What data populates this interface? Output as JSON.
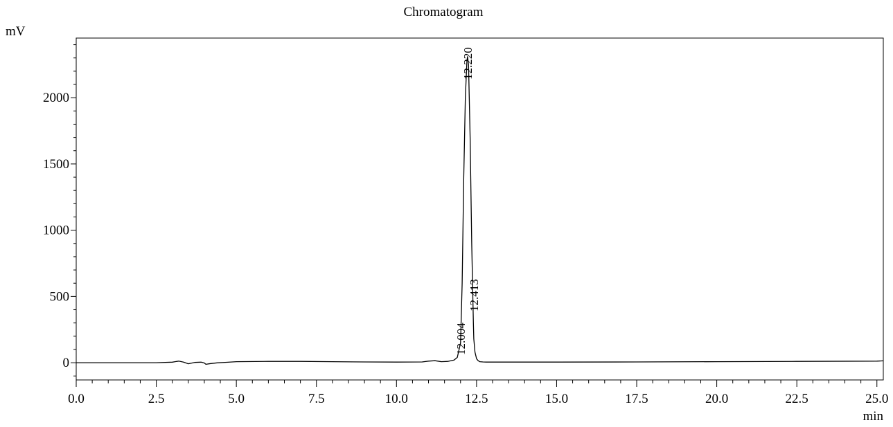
{
  "chart_data": {
    "type": "line",
    "title": "Chromatogram",
    "xlabel": "min",
    "ylabel": "mV",
    "xlim": [
      0,
      25.2
    ],
    "ylim": [
      -130,
      2450
    ],
    "x_ticks": [
      "0.0",
      "2.5",
      "5.0",
      "7.5",
      "10.0",
      "12.5",
      "15.0",
      "17.5",
      "20.0",
      "22.5",
      "25.0"
    ],
    "x_tick_values": [
      0,
      2.5,
      5,
      7.5,
      10,
      12.5,
      15,
      17.5,
      20,
      22.5,
      25
    ],
    "y_ticks": [
      "0",
      "500",
      "1000",
      "1500",
      "2000"
    ],
    "y_tick_values": [
      0,
      500,
      1000,
      1500,
      2000
    ],
    "grid": false,
    "legend": "none",
    "line_color": "#000000",
    "peaks": [
      {
        "label": "12.004",
        "time": 12.004
      },
      {
        "label": "12.220",
        "time": 12.22
      },
      {
        "label": "12.413",
        "time": 12.413
      }
    ],
    "series": [
      {
        "x": [
          0,
          2.5,
          3.0,
          3.2,
          3.35,
          3.5,
          3.7,
          3.9,
          4.0,
          4.05,
          4.2,
          4.4,
          4.7,
          5.0,
          6.0,
          7.0,
          8.0,
          9.0,
          10.0,
          10.8,
          11.0,
          11.2,
          11.4,
          11.6,
          11.8,
          11.9,
          12.0,
          12.05,
          12.1,
          12.15,
          12.2,
          12.22,
          12.25,
          12.3,
          12.35,
          12.4,
          12.413,
          12.45,
          12.5,
          12.55,
          12.6,
          12.7,
          12.8,
          13.0,
          13.5,
          15.0,
          17.5,
          20.0,
          22.5,
          25.0,
          25.2
        ],
        "y": [
          0,
          0,
          4,
          12,
          5,
          -8,
          2,
          4,
          -2,
          -12,
          -6,
          -1,
          3,
          8,
          10,
          10,
          8,
          6,
          5,
          6,
          12,
          15,
          8,
          10,
          20,
          40,
          150,
          600,
          1400,
          2000,
          2280,
          2310,
          2250,
          1700,
          900,
          300,
          180,
          80,
          30,
          15,
          8,
          6,
          5,
          5,
          5,
          5,
          6,
          8,
          10,
          12,
          14
        ]
      }
    ]
  }
}
